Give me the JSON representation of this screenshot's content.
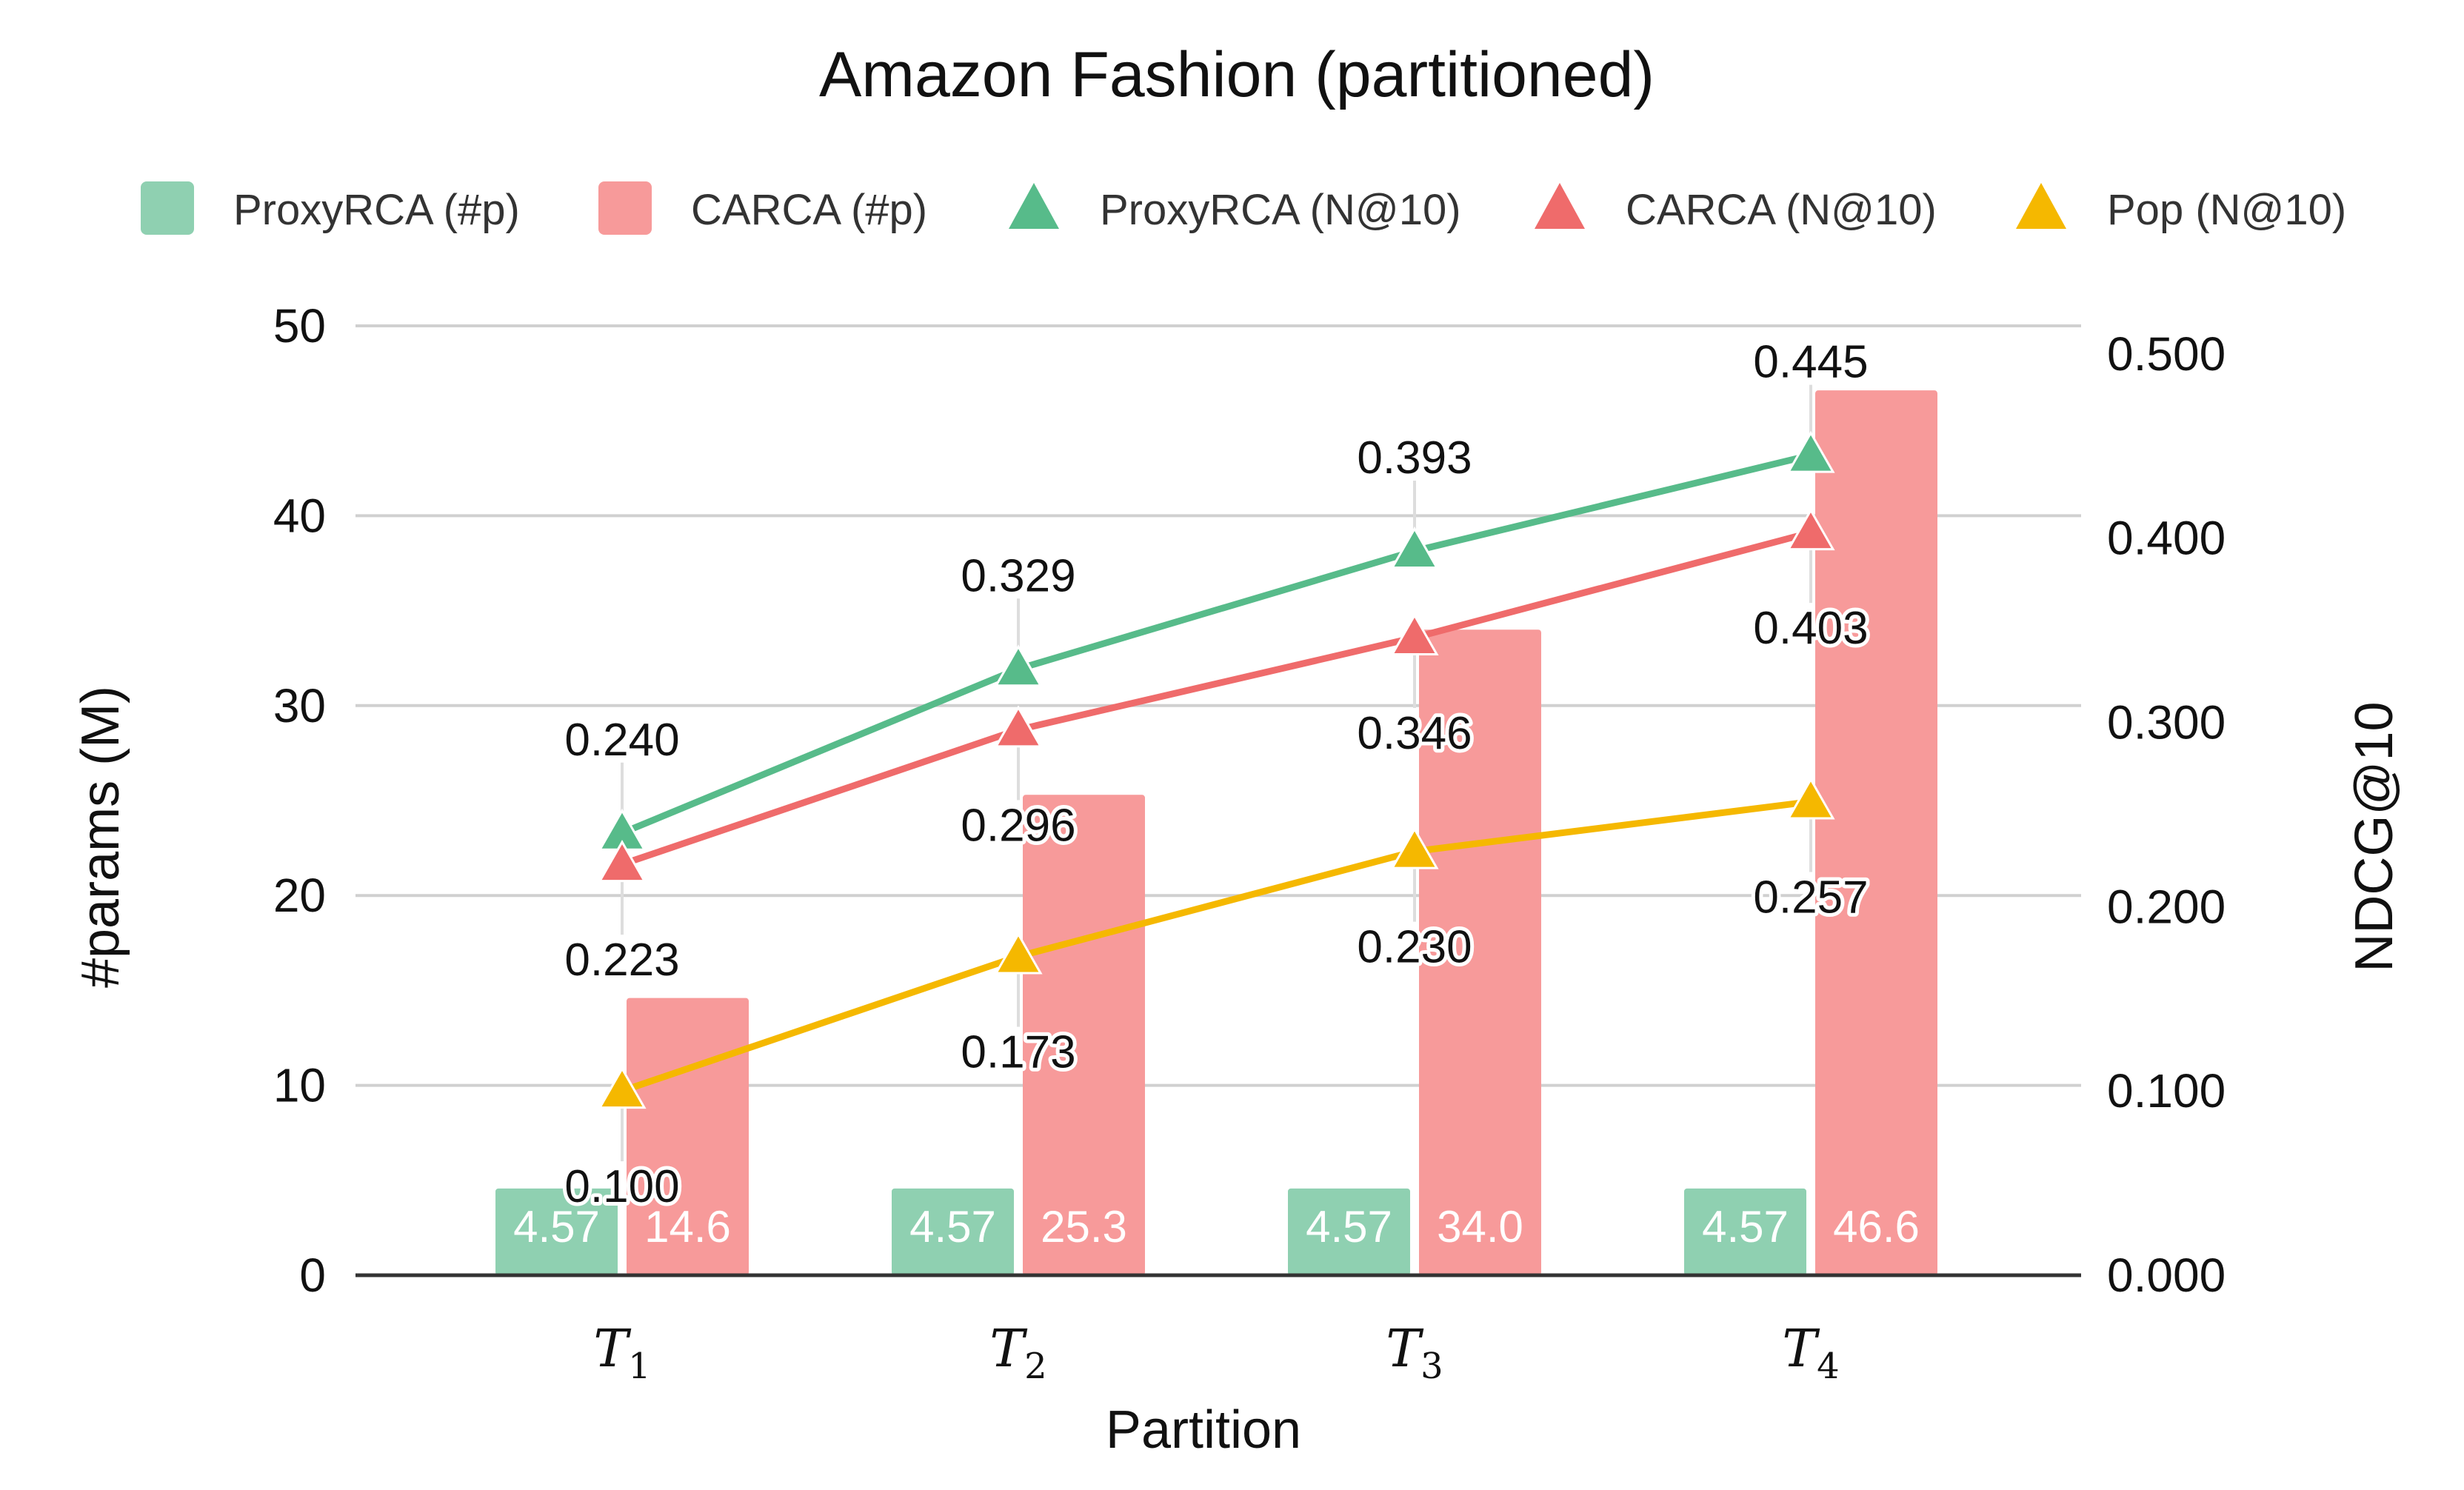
{
  "chart_data": {
    "type": "bar",
    "title": "Amazon Fashion (partitioned)",
    "xlabel": "Partition",
    "ylabel_left": "#params (M)",
    "ylabel_right": "NDCG@10",
    "categories": [
      {
        "main": "T",
        "sub": "1"
      },
      {
        "main": "T",
        "sub": "2"
      },
      {
        "main": "T",
        "sub": "3"
      },
      {
        "main": "T",
        "sub": "4"
      }
    ],
    "y_left": {
      "min": 0,
      "max": 50,
      "ticks": [
        "0",
        "10",
        "20",
        "30",
        "40",
        "50"
      ]
    },
    "y_right": {
      "min": 0,
      "max": 0.52,
      "ticks": [
        "0.000",
        "0.100",
        "0.200",
        "0.300",
        "0.400",
        "0.500"
      ]
    },
    "grid": true,
    "legend_position": "top",
    "bar_series": [
      {
        "name": "ProxyRCA (#p)",
        "color": "#8fd0b1",
        "values": [
          4.57,
          4.57,
          4.57,
          4.57
        ],
        "labels": [
          "4.57",
          "4.57",
          "4.57",
          "4.57"
        ]
      },
      {
        "name": "CARCA (#p)",
        "color": "#f79a9a",
        "values": [
          14.6,
          25.3,
          34.0,
          46.6
        ],
        "labels": [
          "14.6",
          "25.3",
          "34.0",
          "46.6"
        ]
      }
    ],
    "line_series": [
      {
        "name": "ProxyRCA (N@10)",
        "color": "#57bb8a",
        "values": [
          0.24,
          0.329,
          0.393,
          0.445
        ],
        "labels": [
          "0.240",
          "0.329",
          "0.393",
          "0.445"
        ],
        "label_side": "above"
      },
      {
        "name": "CARCA (N@10)",
        "color": "#ef6b6b",
        "values": [
          0.223,
          0.296,
          0.346,
          0.403
        ],
        "labels": [
          "0.223",
          "0.296",
          "0.346",
          "0.403"
        ],
        "label_side": "below"
      },
      {
        "name": "Pop (N@10)",
        "color": "#f5b800",
        "values": [
          0.1,
          0.173,
          0.23,
          0.257
        ],
        "labels": [
          "0.100",
          "0.173",
          "0.230",
          "0.257"
        ],
        "label_side": "below"
      }
    ]
  }
}
